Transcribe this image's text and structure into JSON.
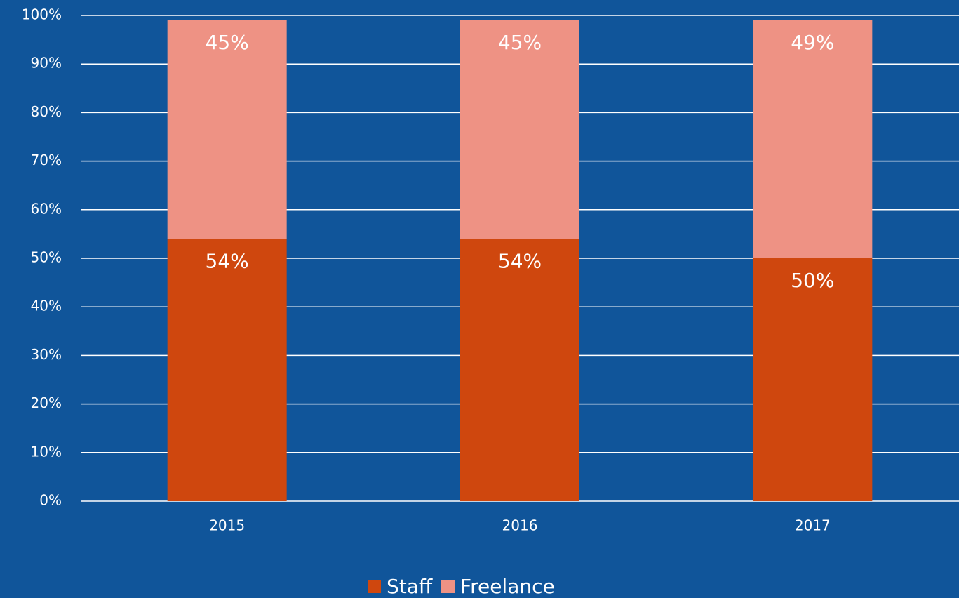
{
  "chart_data": {
    "type": "stacked_bar",
    "categories": [
      "2015",
      "2016",
      "2017"
    ],
    "series": [
      {
        "name": "Staff",
        "color": "#cf470e",
        "values": [
          54,
          54,
          50
        ],
        "value_labels": [
          "54%",
          "54%",
          "50%"
        ]
      },
      {
        "name": "Freelance",
        "color": "#ee9284",
        "values": [
          45,
          45,
          49
        ],
        "value_labels": [
          "45%",
          "45%",
          "49%"
        ]
      }
    ],
    "ylim": [
      0,
      100
    ],
    "yticks": [
      {
        "value": 0,
        "label": "0%"
      },
      {
        "value": 10,
        "label": "10%"
      },
      {
        "value": 20,
        "label": "20%"
      },
      {
        "value": 30,
        "label": "30%"
      },
      {
        "value": 40,
        "label": "40%"
      },
      {
        "value": 50,
        "label": "50%"
      },
      {
        "value": 60,
        "label": "60%"
      },
      {
        "value": 70,
        "label": "70%"
      },
      {
        "value": 80,
        "label": "80%"
      },
      {
        "value": 90,
        "label": "90%"
      },
      {
        "value": 100,
        "label": "100%"
      }
    ],
    "grid": true,
    "legend": "bottom"
  }
}
